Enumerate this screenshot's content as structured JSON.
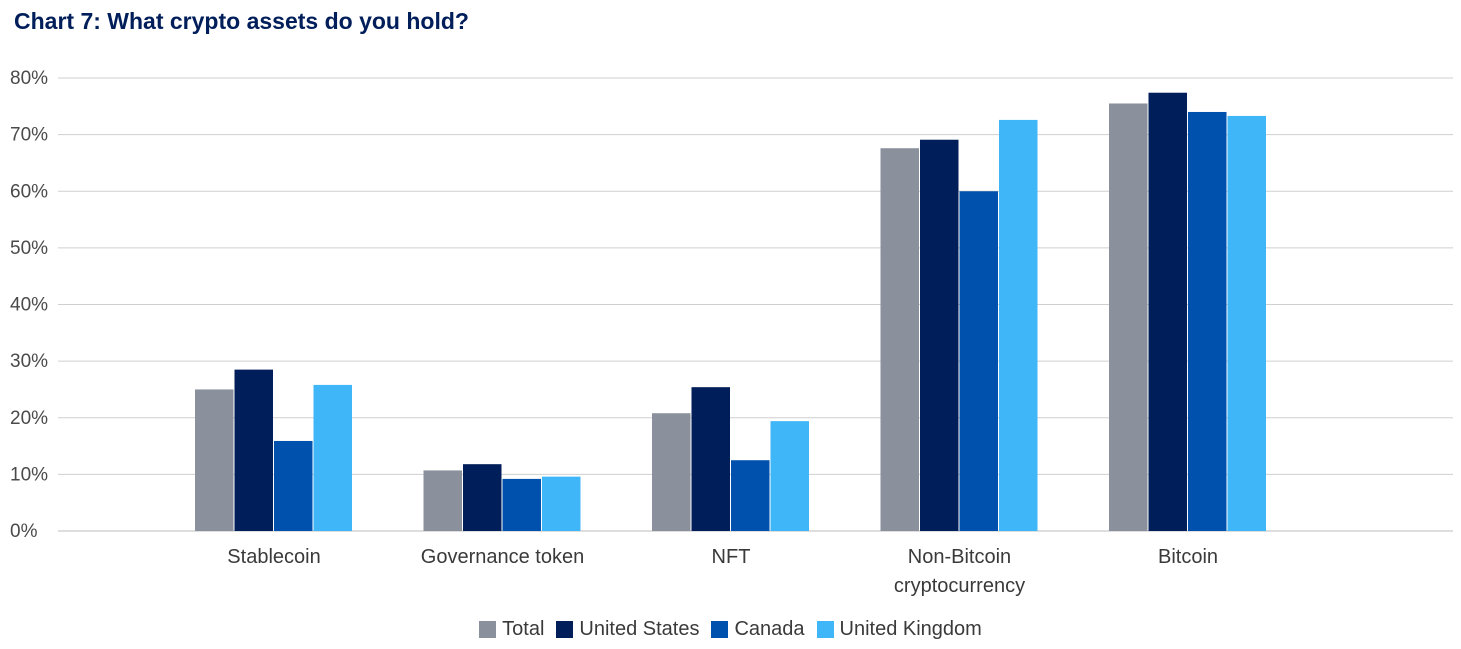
{
  "chart_data": {
    "type": "bar",
    "title": "Chart 7: What crypto assets do you hold?",
    "xlabel": "",
    "ylabel": "",
    "ylim": [
      0,
      80
    ],
    "yticks": [
      "0%",
      "10%",
      "20%",
      "30%",
      "40%",
      "50%",
      "60%",
      "70%",
      "80%"
    ],
    "categories": [
      "Stablecoin",
      "Governance token",
      "NFT",
      "Non-Bitcoin cryptocurrency",
      "Bitcoin"
    ],
    "category_lines": [
      [
        "Stablecoin"
      ],
      [
        "Governance token"
      ],
      [
        "NFT"
      ],
      [
        "Non-Bitcoin",
        "cryptocurrency"
      ],
      [
        "Bitcoin"
      ]
    ],
    "series": [
      {
        "name": "Total",
        "color": "#8a919c",
        "values": [
          25.0,
          10.7,
          20.8,
          67.6,
          75.5
        ]
      },
      {
        "name": "United States",
        "color": "#001e5a",
        "values": [
          28.5,
          11.8,
          25.4,
          69.1,
          77.4
        ]
      },
      {
        "name": "Canada",
        "color": "#0050ad",
        "values": [
          15.9,
          9.2,
          12.5,
          60.0,
          74.0
        ]
      },
      {
        "name": "United Kingdom",
        "color": "#3fb6f7",
        "values": [
          25.8,
          9.6,
          19.4,
          72.6,
          73.3
        ]
      }
    ],
    "grid": true,
    "legend_position": "bottom-center"
  }
}
